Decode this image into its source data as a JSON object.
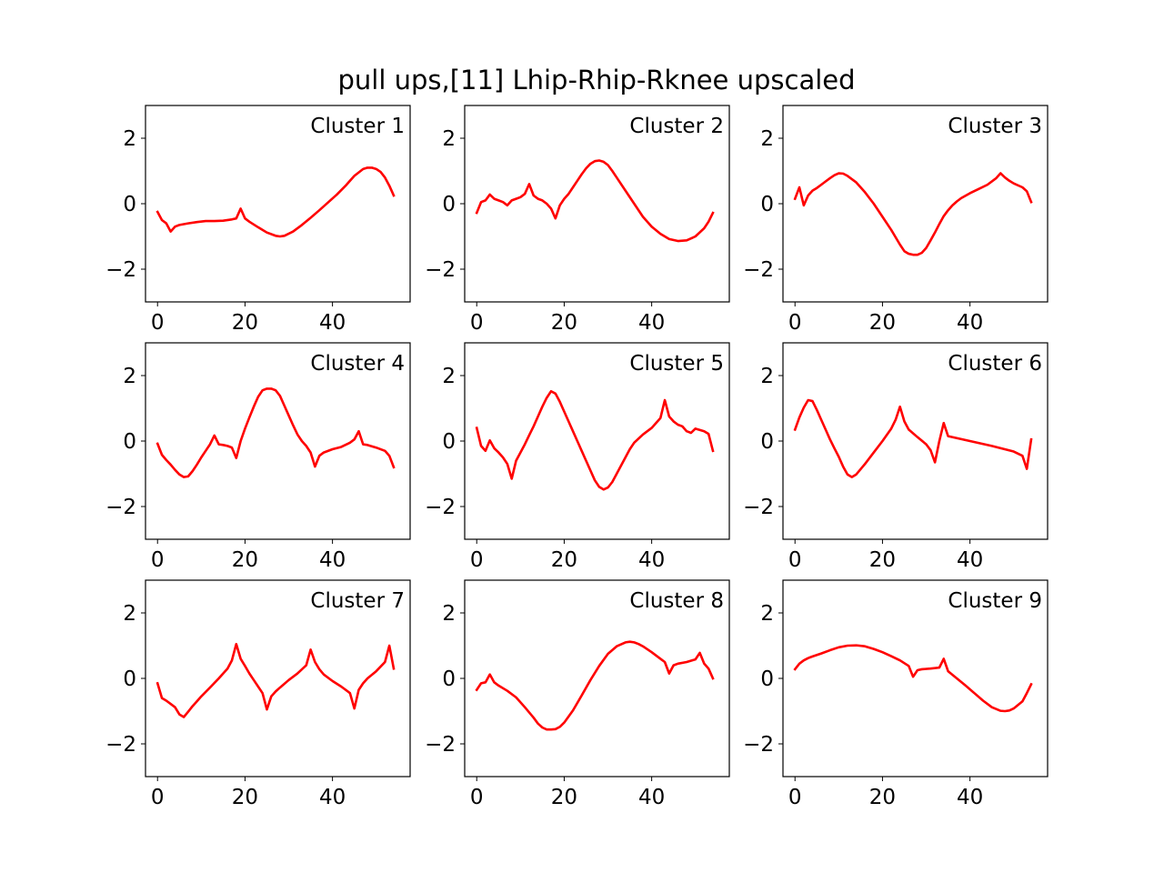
{
  "title": "pull ups,[11] Lhip-Rhip-Rknee upscaled",
  "chart_data": [
    {
      "type": "line",
      "annotation": "Cluster 1",
      "xlim": [
        -2.75,
        57.75
      ],
      "ylim": [
        -3,
        3
      ],
      "xticks": [
        0,
        20,
        40
      ],
      "yticks": [
        -2,
        0,
        2
      ],
      "xtick_labels": [
        "0",
        "20",
        "40"
      ],
      "ytick_labels": [
        "−2",
        "0",
        "2"
      ],
      "series": [
        {
          "color": "#ff0000",
          "x": [
            0,
            1,
            2,
            3,
            4,
            5,
            7,
            9,
            11,
            13,
            15,
            17,
            18,
            19,
            20,
            21,
            23,
            25,
            27,
            28,
            29,
            31,
            33,
            35,
            37,
            39,
            41,
            43,
            45,
            47,
            48,
            49,
            50,
            51,
            52,
            53,
            54
          ],
          "y": [
            -0.25,
            -0.5,
            -0.6,
            -0.85,
            -0.7,
            -0.65,
            -0.6,
            -0.56,
            -0.53,
            -0.53,
            -0.52,
            -0.48,
            -0.45,
            -0.15,
            -0.45,
            -0.55,
            -0.72,
            -0.88,
            -0.98,
            -1.0,
            -0.98,
            -0.85,
            -0.65,
            -0.43,
            -0.2,
            0.04,
            0.28,
            0.55,
            0.85,
            1.06,
            1.1,
            1.1,
            1.06,
            0.97,
            0.8,
            0.55,
            0.25
          ]
        }
      ]
    },
    {
      "type": "line",
      "annotation": "Cluster 2",
      "xlim": [
        -2.75,
        57.75
      ],
      "ylim": [
        -3,
        3
      ],
      "xticks": [
        0,
        20,
        40
      ],
      "yticks": [
        -2,
        0,
        2
      ],
      "xtick_labels": [
        "0",
        "20",
        "40"
      ],
      "ytick_labels": [
        "−2",
        "0",
        "2"
      ],
      "series": [
        {
          "color": "#ff0000",
          "x": [
            0,
            1,
            2,
            3,
            4,
            5,
            6,
            7,
            8,
            9,
            10,
            11,
            12,
            13,
            14,
            15,
            16,
            17,
            18,
            19,
            20,
            21,
            22,
            23,
            24,
            25,
            26,
            27,
            28,
            29,
            30,
            31,
            32,
            34,
            36,
            38,
            40,
            42,
            44,
            46,
            48,
            50,
            52,
            53,
            54
          ],
          "y": [
            -0.28,
            0.05,
            0.1,
            0.28,
            0.15,
            0.1,
            0.05,
            -0.05,
            0.1,
            0.15,
            0.2,
            0.3,
            0.6,
            0.25,
            0.15,
            0.1,
            0.0,
            -0.15,
            -0.45,
            -0.05,
            0.15,
            0.3,
            0.5,
            0.7,
            0.9,
            1.08,
            1.22,
            1.3,
            1.32,
            1.28,
            1.18,
            1.0,
            0.8,
            0.4,
            0.0,
            -0.4,
            -0.7,
            -0.92,
            -1.08,
            -1.14,
            -1.12,
            -1.0,
            -0.75,
            -0.55,
            -0.28
          ]
        }
      ]
    },
    {
      "type": "line",
      "annotation": "Cluster 3",
      "xlim": [
        -2.75,
        57.75
      ],
      "ylim": [
        -3,
        3
      ],
      "xticks": [
        0,
        20,
        40
      ],
      "yticks": [
        -2,
        0,
        2
      ],
      "xtick_labels": [
        "0",
        "20",
        "40"
      ],
      "ytick_labels": [
        "−2",
        "0",
        "2"
      ],
      "series": [
        {
          "color": "#ff0000",
          "x": [
            0,
            1,
            2,
            3,
            4,
            5,
            6,
            7,
            8,
            9,
            10,
            11,
            12,
            14,
            16,
            18,
            20,
            22,
            24,
            25,
            26,
            27,
            28,
            29,
            30,
            31,
            32,
            33,
            34,
            35,
            36,
            37,
            38,
            40,
            42,
            44,
            46,
            47,
            48,
            49,
            50,
            52,
            53,
            54
          ],
          "y": [
            0.15,
            0.5,
            -0.05,
            0.25,
            0.4,
            0.48,
            0.58,
            0.68,
            0.78,
            0.87,
            0.93,
            0.92,
            0.85,
            0.65,
            0.35,
            0.0,
            -0.4,
            -0.8,
            -1.25,
            -1.45,
            -1.53,
            -1.56,
            -1.56,
            -1.5,
            -1.35,
            -1.12,
            -0.88,
            -0.62,
            -0.38,
            -0.2,
            -0.05,
            0.07,
            0.17,
            0.32,
            0.45,
            0.58,
            0.78,
            0.93,
            0.8,
            0.7,
            0.62,
            0.5,
            0.38,
            0.05
          ]
        }
      ]
    },
    {
      "type": "line",
      "annotation": "Cluster 4",
      "xlim": [
        -2.75,
        57.75
      ],
      "ylim": [
        -3,
        3
      ],
      "xticks": [
        0,
        20,
        40
      ],
      "yticks": [
        -2,
        0,
        2
      ],
      "xtick_labels": [
        "0",
        "20",
        "40"
      ],
      "ytick_labels": [
        "−2",
        "0",
        "2"
      ],
      "series": [
        {
          "color": "#ff0000",
          "x": [
            0,
            1,
            2,
            3,
            4,
            5,
            6,
            7,
            8,
            9,
            10,
            11,
            12,
            13,
            14,
            15,
            16,
            17,
            18,
            19,
            20,
            21,
            22,
            23,
            24,
            25,
            26,
            27,
            28,
            29,
            30,
            31,
            32,
            33,
            34,
            35,
            36,
            37,
            38,
            40,
            42,
            44,
            45,
            46,
            47,
            48,
            50,
            52,
            53,
            54
          ],
          "y": [
            -0.08,
            -0.42,
            -0.58,
            -0.72,
            -0.88,
            -1.02,
            -1.1,
            -1.08,
            -0.92,
            -0.72,
            -0.5,
            -0.3,
            -0.1,
            0.17,
            -0.1,
            -0.12,
            -0.15,
            -0.2,
            -0.52,
            0.0,
            0.38,
            0.72,
            1.05,
            1.35,
            1.55,
            1.6,
            1.6,
            1.55,
            1.38,
            1.08,
            0.78,
            0.48,
            0.2,
            0.0,
            -0.15,
            -0.35,
            -0.78,
            -0.45,
            -0.35,
            -0.25,
            -0.18,
            -0.05,
            0.05,
            0.3,
            -0.1,
            -0.12,
            -0.2,
            -0.3,
            -0.45,
            -0.8
          ]
        }
      ]
    },
    {
      "type": "line",
      "annotation": "Cluster 5",
      "xlim": [
        -2.75,
        57.75
      ],
      "ylim": [
        -3,
        3
      ],
      "xticks": [
        0,
        20,
        40
      ],
      "yticks": [
        -2,
        0,
        2
      ],
      "xtick_labels": [
        "0",
        "20",
        "40"
      ],
      "ytick_labels": [
        "−2",
        "0",
        "2"
      ],
      "series": [
        {
          "color": "#ff0000",
          "x": [
            0,
            1,
            2,
            3,
            4,
            5,
            6,
            7,
            8,
            9,
            10,
            11,
            12,
            13,
            14,
            15,
            16,
            17,
            18,
            19,
            20,
            21,
            22,
            23,
            24,
            25,
            26,
            27,
            28,
            29,
            30,
            31,
            32,
            33,
            34,
            35,
            36,
            38,
            40,
            42,
            43,
            44,
            45,
            46,
            47,
            48,
            49,
            50,
            52,
            53,
            54
          ],
          "y": [
            0.4,
            -0.15,
            -0.3,
            0.02,
            -0.22,
            -0.35,
            -0.5,
            -0.7,
            -1.15,
            -0.6,
            -0.35,
            -0.1,
            0.18,
            0.45,
            0.75,
            1.05,
            1.32,
            1.52,
            1.45,
            1.2,
            0.9,
            0.6,
            0.3,
            0.0,
            -0.3,
            -0.6,
            -0.9,
            -1.2,
            -1.4,
            -1.48,
            -1.42,
            -1.25,
            -1.0,
            -0.75,
            -0.5,
            -0.25,
            -0.05,
            0.2,
            0.4,
            0.7,
            1.25,
            0.75,
            0.6,
            0.5,
            0.45,
            0.3,
            0.25,
            0.38,
            0.3,
            0.22,
            -0.3
          ]
        }
      ]
    },
    {
      "type": "line",
      "annotation": "Cluster 6",
      "xlim": [
        -2.75,
        57.75
      ],
      "ylim": [
        -3,
        3
      ],
      "xticks": [
        0,
        20,
        40
      ],
      "yticks": [
        -2,
        0,
        2
      ],
      "xtick_labels": [
        "0",
        "20",
        "40"
      ],
      "ytick_labels": [
        "−2",
        "0",
        "2"
      ],
      "series": [
        {
          "color": "#ff0000",
          "x": [
            0,
            1,
            2,
            3,
            4,
            5,
            6,
            7,
            8,
            9,
            10,
            11,
            12,
            13,
            14,
            16,
            18,
            20,
            22,
            23,
            24,
            25,
            26,
            28,
            30,
            31,
            32,
            33,
            34,
            35,
            40,
            45,
            50,
            52,
            53,
            54
          ],
          "y": [
            0.35,
            0.72,
            1.02,
            1.25,
            1.22,
            0.95,
            0.65,
            0.35,
            0.05,
            -0.22,
            -0.48,
            -0.78,
            -1.02,
            -1.1,
            -1.02,
            -0.7,
            -0.35,
            0.0,
            0.38,
            0.65,
            1.05,
            0.6,
            0.35,
            0.12,
            -0.1,
            -0.28,
            -0.65,
            0.0,
            0.55,
            0.15,
            0.0,
            -0.15,
            -0.32,
            -0.45,
            -0.85,
            0.05
          ]
        }
      ]
    },
    {
      "type": "line",
      "annotation": "Cluster 7",
      "xlim": [
        -2.75,
        57.75
      ],
      "ylim": [
        -3,
        3
      ],
      "xticks": [
        0,
        20,
        40
      ],
      "yticks": [
        -2,
        0,
        2
      ],
      "xtick_labels": [
        "0",
        "20",
        "40"
      ],
      "ytick_labels": [
        "−2",
        "0",
        "2"
      ],
      "series": [
        {
          "color": "#ff0000",
          "x": [
            0,
            1,
            2,
            3,
            4,
            5,
            6,
            7,
            8,
            9,
            10,
            12,
            14,
            16,
            17,
            18,
            19,
            20,
            21,
            22,
            23,
            24,
            25,
            26,
            27,
            28,
            30,
            32,
            34,
            35,
            36,
            37,
            38,
            40,
            42,
            44,
            45,
            46,
            47,
            48,
            50,
            52,
            53,
            54
          ],
          "y": [
            -0.15,
            -0.6,
            -0.68,
            -0.78,
            -0.88,
            -1.1,
            -1.18,
            -1.02,
            -0.85,
            -0.7,
            -0.55,
            -0.28,
            0.0,
            0.3,
            0.55,
            1.05,
            0.6,
            0.38,
            0.15,
            -0.05,
            -0.25,
            -0.45,
            -0.95,
            -0.55,
            -0.4,
            -0.28,
            -0.05,
            0.15,
            0.4,
            0.88,
            0.5,
            0.28,
            0.12,
            -0.08,
            -0.25,
            -0.45,
            -0.92,
            -0.35,
            -0.15,
            0.0,
            0.22,
            0.5,
            1.0,
            0.3
          ]
        }
      ]
    },
    {
      "type": "line",
      "annotation": "Cluster 8",
      "xlim": [
        -2.75,
        57.75
      ],
      "ylim": [
        -3,
        3
      ],
      "xticks": [
        0,
        20,
        40
      ],
      "yticks": [
        -2,
        0,
        2
      ],
      "xtick_labels": [
        "0",
        "20",
        "40"
      ],
      "ytick_labels": [
        "−2",
        "0",
        "2"
      ],
      "series": [
        {
          "color": "#ff0000",
          "x": [
            0,
            1,
            2,
            3,
            4,
            5,
            7,
            9,
            11,
            13,
            14,
            15,
            16,
            17,
            18,
            19,
            20,
            22,
            24,
            26,
            28,
            30,
            32,
            34,
            35,
            36,
            37,
            38,
            40,
            42,
            43,
            44,
            45,
            46,
            48,
            50,
            51,
            52,
            53,
            54
          ],
          "y": [
            -0.35,
            -0.15,
            -0.12,
            0.12,
            -0.12,
            -0.22,
            -0.38,
            -0.58,
            -0.88,
            -1.2,
            -1.38,
            -1.5,
            -1.56,
            -1.56,
            -1.55,
            -1.48,
            -1.35,
            -0.98,
            -0.52,
            -0.05,
            0.38,
            0.75,
            0.98,
            1.1,
            1.12,
            1.1,
            1.05,
            0.98,
            0.8,
            0.6,
            0.5,
            0.15,
            0.4,
            0.45,
            0.5,
            0.58,
            0.78,
            0.45,
            0.3,
            0.0
          ]
        }
      ]
    },
    {
      "type": "line",
      "annotation": "Cluster 9",
      "xlim": [
        -2.75,
        57.75
      ],
      "ylim": [
        -3,
        3
      ],
      "xticks": [
        0,
        20,
        40
      ],
      "yticks": [
        -2,
        0,
        2
      ],
      "xtick_labels": [
        "0",
        "20",
        "40"
      ],
      "ytick_labels": [
        "−2",
        "0",
        "2"
      ],
      "series": [
        {
          "color": "#ff0000",
          "x": [
            0,
            1,
            2,
            3,
            4,
            6,
            8,
            10,
            12,
            14,
            16,
            18,
            20,
            22,
            24,
            26,
            27,
            28,
            29,
            31,
            33,
            34,
            35,
            37,
            39,
            41,
            43,
            45,
            47,
            48,
            49,
            50,
            52,
            53,
            54
          ],
          "y": [
            0.28,
            0.45,
            0.55,
            0.62,
            0.67,
            0.76,
            0.86,
            0.95,
            1.0,
            1.01,
            0.98,
            0.9,
            0.8,
            0.68,
            0.55,
            0.38,
            0.05,
            0.25,
            0.28,
            0.3,
            0.33,
            0.6,
            0.22,
            0.0,
            -0.22,
            -0.45,
            -0.68,
            -0.88,
            -0.99,
            -1.0,
            -0.98,
            -0.92,
            -0.7,
            -0.45,
            -0.18
          ]
        }
      ]
    }
  ]
}
